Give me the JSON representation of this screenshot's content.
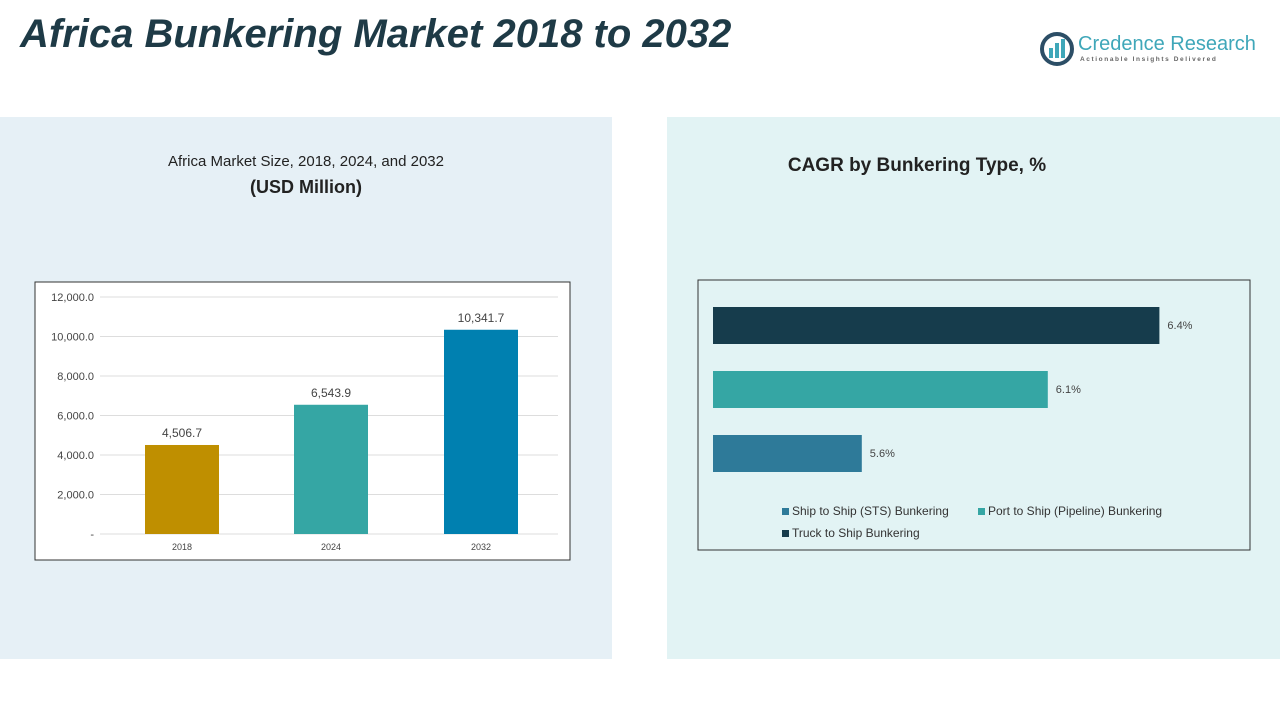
{
  "header": {
    "title": "Africa Bunkering Market 2018 to 2032",
    "logo_name": "Credence Research",
    "logo_tagline": "Actionable Insights Delivered"
  },
  "chart_data": [
    {
      "type": "bar",
      "title": "Africa Market Size, 2018, 2024, and 2032",
      "subtitle": "(USD Million)",
      "categories": [
        "2018",
        "2024",
        "2032"
      ],
      "values": [
        4506.7,
        6543.9,
        10341.7
      ],
      "value_labels": [
        "4,506.7",
        "6,543.9",
        "10,341.7"
      ],
      "ylim": [
        0,
        12000
      ],
      "yticks": [
        "-",
        "2,000.0",
        "4,000.0",
        "6,000.0",
        "8,000.0",
        "10,000.0",
        "12,000.0"
      ],
      "grid": true,
      "colors": [
        "#bf8f00",
        "#35a6a4",
        "#0080b0"
      ]
    },
    {
      "type": "bar",
      "orientation": "horizontal",
      "title": "CAGR by Bunkering Type, %",
      "categories": [
        "Ship to Ship (STS) Bunkering",
        "Port to Ship (Pipeline) Bunkering",
        "Truck to Ship Bunkering"
      ],
      "values": [
        5.6,
        6.1,
        6.4
      ],
      "value_labels": [
        "5.6%",
        "6.1%",
        "6.4%"
      ],
      "xlim": [
        5.2,
        6.6
      ],
      "legend_position": "bottom",
      "colors": [
        "#2e7a99",
        "#35a6a4",
        "#163c4c"
      ]
    }
  ]
}
